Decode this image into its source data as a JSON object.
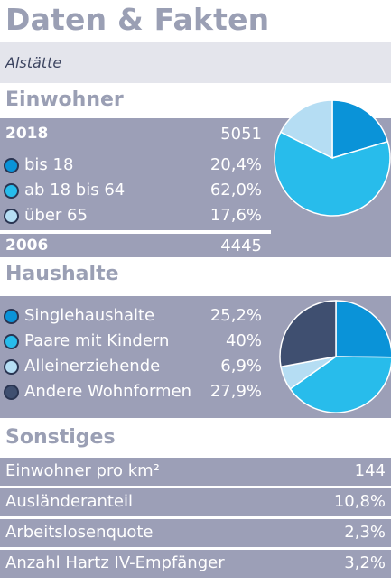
{
  "header": {
    "title": "Daten & Fakten",
    "subtitle": "Alstätte"
  },
  "colors": {
    "dark_blue": "#0a93d8",
    "light_blue": "#28bceb",
    "pale_blue": "#b5ddf3",
    "slate": "#3f4f70",
    "panel": "#9c9fb7"
  },
  "einwohner": {
    "heading": "Einwohner",
    "year_2018": {
      "label": "2018",
      "value": "5051"
    },
    "groups": [
      {
        "label": "bis 18",
        "value": "20,4%",
        "color": "#0a93d8"
      },
      {
        "label": "ab 18 bis 64",
        "value": "62,0%",
        "color": "#28bceb"
      },
      {
        "label": "über 65",
        "value": "17,6%",
        "color": "#b5ddf3"
      }
    ],
    "year_2006": {
      "label": "2006",
      "value": "4445"
    }
  },
  "haushalte": {
    "heading": "Haushalte",
    "groups": [
      {
        "label": "Singlehaushalte",
        "value": "25,2%",
        "color": "#0a93d8"
      },
      {
        "label": "Paare mit Kindern",
        "value": "40%",
        "color": "#28bceb"
      },
      {
        "label": "Alleinerziehende",
        "value": "6,9%",
        "color": "#b5ddf3"
      },
      {
        "label": "Andere Wohnformen",
        "value": "27,9%",
        "color": "#3f4f70"
      }
    ]
  },
  "sonstiges": {
    "heading": "Sonstiges",
    "rows": [
      {
        "label": "Einwohner pro km²",
        "value": "144"
      },
      {
        "label": "Ausländeranteil",
        "value": "10,8%"
      },
      {
        "label": "Arbeitslosenquote",
        "value": "2,3%"
      },
      {
        "label": "Anzahl Hartz IV-Empfänger",
        "value": "3,2%"
      }
    ]
  },
  "chart_data": [
    {
      "type": "pie",
      "categories": [
        "bis 18",
        "ab 18 bis 64",
        "über 65"
      ],
      "values": [
        20.4,
        62.0,
        17.6
      ],
      "colors": [
        "#0a93d8",
        "#28bceb",
        "#b5ddf3"
      ]
    },
    {
      "type": "pie",
      "categories": [
        "Singlehaushalte",
        "Paare mit Kindern",
        "Alleinerziehende",
        "Andere Wohnformen"
      ],
      "values": [
        25.2,
        40,
        6.9,
        27.9
      ],
      "colors": [
        "#0a93d8",
        "#28bceb",
        "#b5ddf3",
        "#3f4f70"
      ]
    }
  ]
}
